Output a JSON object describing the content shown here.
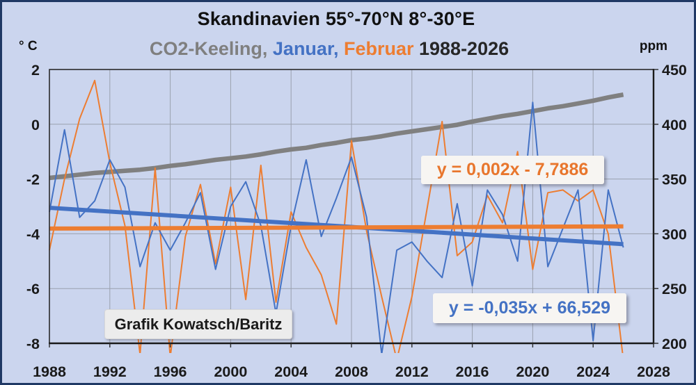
{
  "title": "Skandinavien 55°-70°N 8°-30°E",
  "subtitle": {
    "co2": "CO2-Keeling, ",
    "januar": "Januar, ",
    "februar": "Februar ",
    "years": "1988-2026"
  },
  "axis_units": {
    "left": "° C",
    "right": "ppm"
  },
  "annotations": {
    "trend_feb_equation": "y = 0,002x - 7,7886",
    "trend_jan_equation": "y = -0,035x + 66,529",
    "credit": "Grafik Kowatsch/Baritz"
  },
  "colors": {
    "background": "#cbd5ee",
    "outer_border": "#1f3864",
    "januar_blue": "#4472c4",
    "februar_orange": "#ed7d31",
    "co2_gray": "#808080",
    "gridline": "#9aa0ae",
    "axis_line": "#2b2b2b",
    "tick_label": "#1a1a1a"
  },
  "chart_data": {
    "type": "line",
    "title": "Skandinavien 55°-70°N 8°-30°E",
    "subtitle": "CO2-Keeling, Januar, Februar 1988-2026",
    "x_axis": {
      "range": [
        1988,
        2028
      ],
      "ticks": [
        1988,
        1992,
        1996,
        2000,
        2004,
        2008,
        2012,
        2016,
        2020,
        2024,
        2028
      ]
    },
    "y_axis_left": {
      "unit": "° C",
      "range": [
        -8,
        2
      ],
      "ticks": [
        2,
        0,
        -2,
        -4,
        -6,
        -8
      ]
    },
    "y_axis_right": {
      "unit": "ppm",
      "range": [
        200,
        450
      ],
      "ticks": [
        450,
        400,
        350,
        300,
        250,
        200
      ]
    },
    "grid": true,
    "legend": "in-subtitle color coding",
    "years": [
      1988,
      1989,
      1990,
      1991,
      1992,
      1993,
      1994,
      1995,
      1996,
      1997,
      1998,
      1999,
      2000,
      2001,
      2002,
      2003,
      2004,
      2005,
      2006,
      2007,
      2008,
      2009,
      2010,
      2011,
      2012,
      2013,
      2014,
      2015,
      2016,
      2017,
      2018,
      2019,
      2020,
      2021,
      2022,
      2023,
      2024,
      2025,
      2026
    ],
    "series": [
      {
        "name": "CO2-Keeling",
        "axis": "right",
        "color": "#808080",
        "width": 6.5,
        "values": [
          351,
          352.5,
          354,
          355.5,
          356.5,
          357.5,
          358.5,
          360,
          362,
          363.5,
          365.5,
          367.5,
          369,
          370.5,
          372.5,
          375,
          377,
          378.5,
          381,
          383,
          385.5,
          387,
          389,
          391.5,
          393.5,
          395.5,
          397.5,
          399.5,
          402.5,
          405,
          407.5,
          409.5,
          412,
          414.5,
          416.5,
          419,
          421.5,
          424.5,
          427
        ]
      },
      {
        "name": "Februar",
        "axis": "left",
        "color": "#ed7d31",
        "width": 2,
        "values": [
          -4.6,
          -2.0,
          0.2,
          1.6,
          -1.4,
          -3.7,
          -8.4,
          -1.6,
          -8.5,
          -4.1,
          -2.2,
          -5.1,
          -2.3,
          -6.4,
          -1.5,
          -6.5,
          -3.2,
          -4.5,
          -5.5,
          -7.3,
          -0.6,
          -3.9,
          -6.3,
          -8.6,
          -6.3,
          -3.1,
          0.1,
          -4.8,
          -4.3,
          -2.6,
          -3.6,
          -1.0,
          -5.3,
          -2.5,
          -2.4,
          -2.8,
          -2.4,
          -4.0,
          -8.6
        ]
      },
      {
        "name": "Januar",
        "axis": "left",
        "color": "#4472c4",
        "width": 2,
        "values": [
          -3.2,
          -0.2,
          -3.4,
          -2.8,
          -1.3,
          -2.3,
          -5.2,
          -3.6,
          -4.6,
          -3.6,
          -2.5,
          -5.3,
          -3.0,
          -2.1,
          -3.7,
          -6.9,
          -3.7,
          -1.3,
          -4.1,
          -2.7,
          -1.2,
          -3.4,
          -8.4,
          -4.6,
          -4.3,
          -5.0,
          -5.6,
          -2.9,
          -5.9,
          -2.4,
          -3.3,
          -5.0,
          0.8,
          -5.2,
          -3.8,
          -2.4,
          -7.9,
          -2.4,
          -4.5
        ]
      }
    ],
    "trend_lines": [
      {
        "name": "Januar-Trend",
        "equation": "y = -0,035x + 66,529",
        "color": "#4472c4",
        "width": 6,
        "x": [
          1988,
          2026
        ],
        "y": [
          -3.05,
          -4.38
        ]
      },
      {
        "name": "Februar-Trend",
        "equation": "y = 0,002x - 7,7886",
        "color": "#ed7d31",
        "width": 6,
        "x": [
          1988,
          2026
        ],
        "y": [
          -3.81,
          -3.73
        ]
      }
    ]
  }
}
